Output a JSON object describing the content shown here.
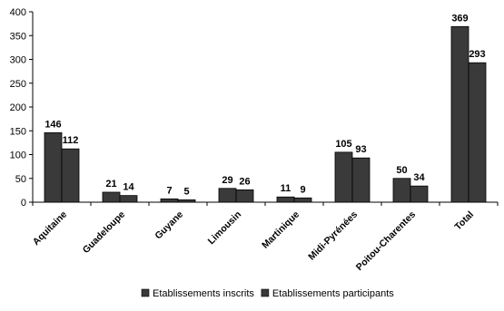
{
  "chart_data": {
    "type": "bar",
    "title": "",
    "xlabel": "",
    "ylabel": "",
    "ylim": [
      0,
      400
    ],
    "yticks": [
      0,
      50,
      100,
      150,
      200,
      250,
      300,
      350,
      400
    ],
    "grid": false,
    "legend_position": "bottom",
    "categories": [
      "Aquitaine",
      "Guadeloupe",
      "Guyane",
      "Limousin",
      "Martinique",
      "Midi-Pyrénées",
      "Poitou-Charentes",
      "Total"
    ],
    "series": [
      {
        "name": "Etablissements inscrits",
        "color": "#3a3a3a",
        "values": [
          146,
          21,
          7,
          29,
          11,
          105,
          50,
          369
        ]
      },
      {
        "name": "Etablissements participants",
        "color": "#3a3a3a",
        "values": [
          112,
          14,
          5,
          26,
          9,
          93,
          34,
          293
        ]
      }
    ]
  }
}
